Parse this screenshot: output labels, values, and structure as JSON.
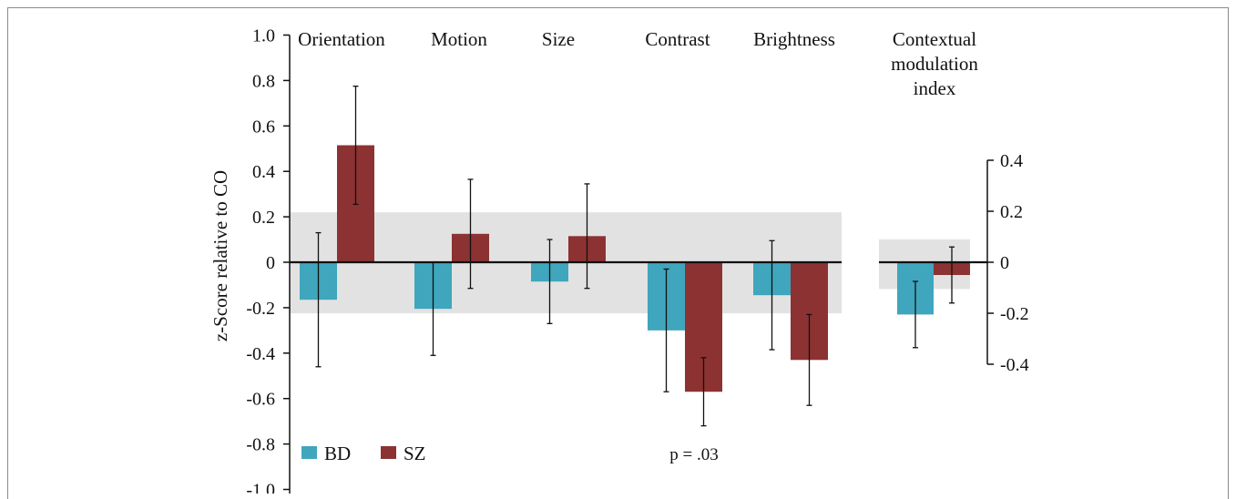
{
  "chart_data": [
    {
      "type": "bar",
      "ylabel": "z-Score relative to CO",
      "ylim": [
        -1.0,
        1.0
      ],
      "yticks": [
        "1.0",
        "0.8",
        "0.6",
        "0.4",
        "0.2",
        "0",
        "-0.2",
        "-0.4",
        "-0.6",
        "-0.8",
        "-1.0"
      ],
      "categories": [
        "Orientation",
        "Motion",
        "Size",
        "Contrast",
        "Brightness"
      ],
      "series": [
        {
          "name": "BD",
          "color": "#3fa6bd",
          "values": [
            -0.165,
            -0.205,
            -0.085,
            -0.3,
            -0.145
          ],
          "errors": [
            0.295,
            0.205,
            0.185,
            0.27,
            0.24
          ]
        },
        {
          "name": "SZ",
          "color": "#8c3232",
          "values": [
            0.515,
            0.125,
            0.115,
            -0.57,
            -0.43
          ],
          "errors": [
            0.26,
            0.24,
            0.23,
            0.15,
            0.2
          ]
        }
      ],
      "shaded_band": [
        -0.225,
        0.22
      ],
      "annotation": "p = .03",
      "legend_position": "bottom-left"
    },
    {
      "type": "bar",
      "categories": [
        "Contextual modulation index"
      ],
      "category_lines": [
        "Contextual",
        "modulation",
        "index"
      ],
      "yticks": [
        "0.4",
        "0.2",
        "0",
        "-0.2",
        "-0.4"
      ],
      "ylim": [
        -0.4,
        0.4
      ],
      "series": [
        {
          "name": "BD",
          "color": "#3fa6bd",
          "values": [
            -0.205
          ],
          "errors": [
            0.13
          ]
        },
        {
          "name": "SZ",
          "color": "#8c3232",
          "values": [
            -0.05
          ],
          "errors": [
            0.11
          ]
        }
      ],
      "shaded_band": [
        -0.105,
        0.09
      ],
      "axis_side": "right"
    }
  ]
}
